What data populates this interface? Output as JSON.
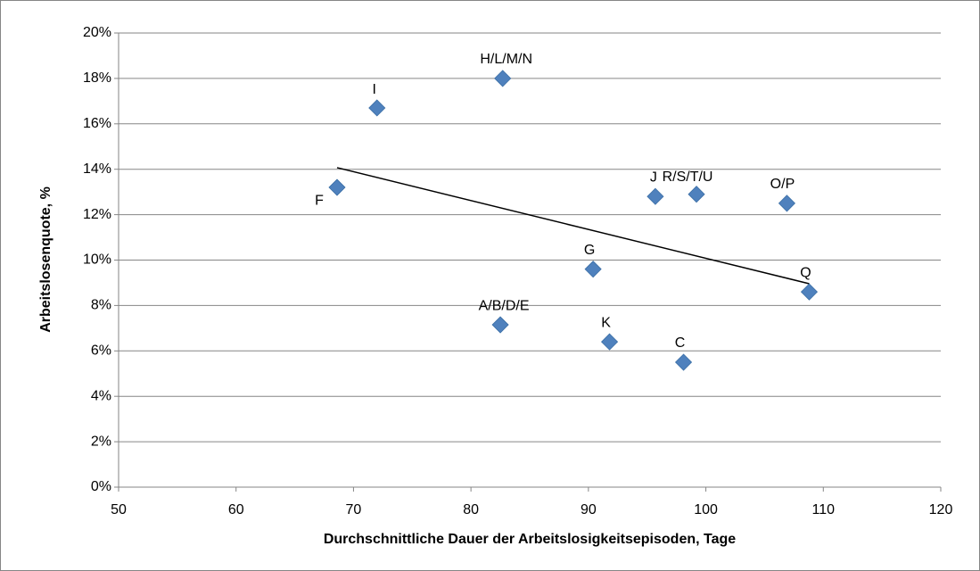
{
  "chart_data": {
    "type": "scatter",
    "x_label": "Durchschnittliche Dauer der Arbeitslosigkeitsepisoden, Tage",
    "y_label": "Arbeitslosenquote, %",
    "labels": [
      "F",
      "I",
      "H/L/M/N",
      "A/B/D/E",
      "G",
      "K",
      "C",
      "J",
      "R/S/T/U",
      "O/P",
      "Q"
    ],
    "x": [
      68.6,
      72.0,
      82.7,
      82.5,
      90.4,
      91.8,
      98.1,
      95.7,
      99.2,
      106.9,
      108.8
    ],
    "values": [
      13.2,
      16.7,
      18.0,
      7.15,
      9.6,
      6.4,
      5.5,
      12.8,
      12.9,
      12.5,
      8.6
    ],
    "color": "#4f81bd",
    "trendline": {
      "x": [
        68.6,
        108.8
      ],
      "y": [
        14.07,
        8.96
      ],
      "color": "#000000"
    },
    "xlim": [
      50,
      120
    ],
    "xticks": [
      50,
      60,
      70,
      80,
      90,
      100,
      110,
      120
    ],
    "ylim": [
      0,
      20
    ],
    "yticks": [
      {
        "value": 0,
        "label": "0%"
      },
      {
        "value": 2,
        "label": "2%"
      },
      {
        "value": 4,
        "label": "4%"
      },
      {
        "value": 6,
        "label": "6%"
      },
      {
        "value": 8,
        "label": "8%"
      },
      {
        "value": 10,
        "label": "10%"
      },
      {
        "value": 12,
        "label": "12%"
      },
      {
        "value": 14,
        "label": "14%"
      },
      {
        "value": 16,
        "label": "16%"
      },
      {
        "value": 18,
        "label": "18%"
      },
      {
        "value": 20,
        "label": "20%"
      }
    ],
    "grid": true
  }
}
